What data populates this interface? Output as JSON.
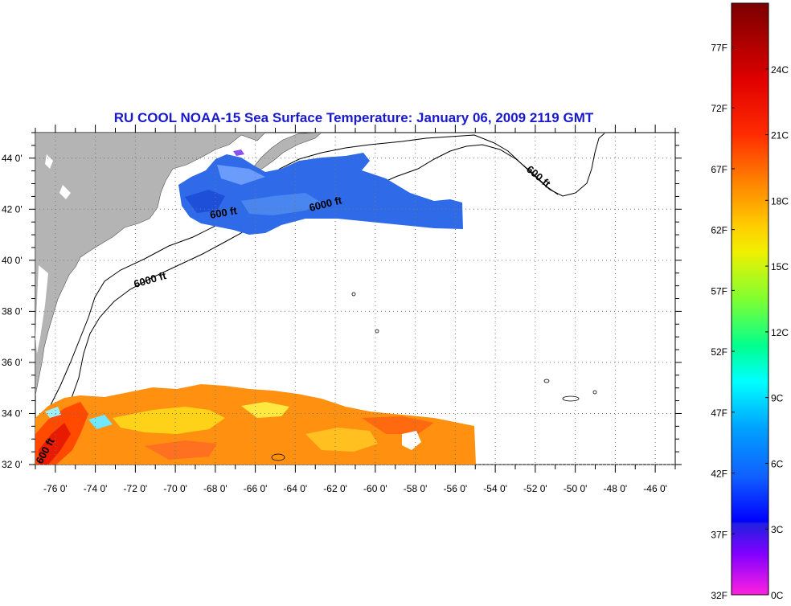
{
  "title": "RU COOL  NOAA-15  Sea Surface Temperature:  January 06, 2009 2119 GMT",
  "map": {
    "lon_labels": [
      "-76 0'",
      "-74 0'",
      "-72 0'",
      "-70 0'",
      "-68 0'",
      "-66 0'",
      "-64 0'",
      "-62 0'",
      "-60 0'",
      "-58 0'",
      "-56 0'",
      "-54 0'",
      "-52 0'",
      "-50 0'",
      "-48 0'",
      "-46 0'"
    ],
    "lat_labels": [
      "44 0'",
      "42 0'",
      "40 0'",
      "38 0'",
      "36 0'",
      "34 0'",
      "32 0'"
    ],
    "contour_labels": [
      "600 ft",
      "6000 ft",
      "6000 ft",
      "600 ft",
      "600 ft"
    ],
    "land_color": "#b4b4b4",
    "grid": "dotted"
  },
  "colorbar": {
    "fahrenheit_labels": [
      "77F",
      "72F",
      "67F",
      "62F",
      "57F",
      "52F",
      "47F",
      "42F",
      "37F",
      "32F"
    ],
    "celsius_labels": [
      "24C",
      "21C",
      "18C",
      "15C",
      "12C",
      "9C",
      "6C",
      "3C",
      "0C"
    ],
    "colors_top_to_bottom": [
      "#8b0000",
      "#ff0000",
      "#ff7f00",
      "#ffff00",
      "#7fff00",
      "#00ff7f",
      "#00ffff",
      "#007fff",
      "#0000ff",
      "#7f00ff",
      "#ff00ff"
    ]
  }
}
